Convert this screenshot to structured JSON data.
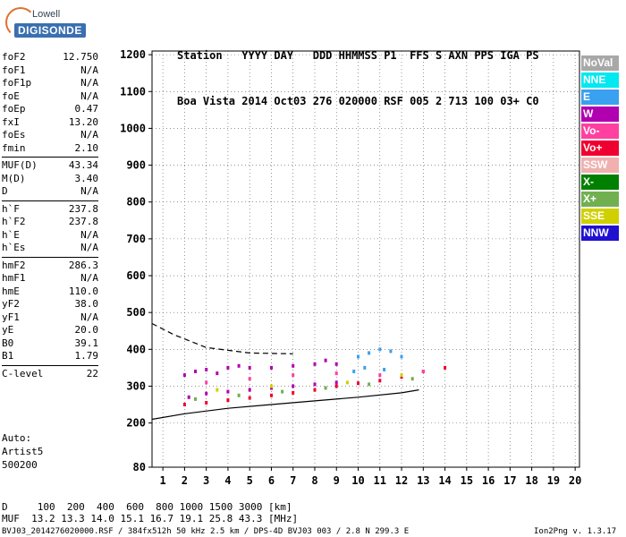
{
  "logo": {
    "line1": "Lowell",
    "line2": "DIGISONDE"
  },
  "header": {
    "row1": "Station   YYYY DAY   DDD HHMMSS P1  FFS S AXN PPS IGA PS",
    "row2": "Boa Vista 2014 Oct03 276 020000 RSF 005 2 713 100 03+ C0"
  },
  "params": {
    "group1": [
      {
        "name": "foF2",
        "value": "12.750"
      },
      {
        "name": "foF1",
        "value": "N/A"
      },
      {
        "name": "foF1p",
        "value": "N/A"
      },
      {
        "name": "foE",
        "value": "N/A"
      },
      {
        "name": "foEp",
        "value": "0.47"
      },
      {
        "name": "fxI",
        "value": "13.20"
      },
      {
        "name": "foEs",
        "value": "N/A"
      },
      {
        "name": "fmin",
        "value": "2.10"
      }
    ],
    "group2": [
      {
        "name": "MUF(D)",
        "value": "43.34"
      },
      {
        "name": "M(D)",
        "value": "3.40"
      },
      {
        "name": "D",
        "value": "N/A"
      }
    ],
    "group3": [
      {
        "name": "h`F",
        "value": "237.8"
      },
      {
        "name": "h`F2",
        "value": "237.8"
      },
      {
        "name": "h`E",
        "value": "N/A"
      },
      {
        "name": "h`Es",
        "value": "N/A"
      }
    ],
    "group4": [
      {
        "name": "hmF2",
        "value": "286.3"
      },
      {
        "name": "hmF1",
        "value": "N/A"
      },
      {
        "name": "hmE",
        "value": "110.0"
      },
      {
        "name": "yF2",
        "value": "38.0"
      },
      {
        "name": "yF1",
        "value": "N/A"
      },
      {
        "name": "yE",
        "value": "20.0"
      },
      {
        "name": "B0",
        "value": "39.1"
      },
      {
        "name": "B1",
        "value": "1.79"
      }
    ],
    "group5": [
      {
        "name": "C-level",
        "value": "22"
      }
    ]
  },
  "auto": {
    "line1": "Auto:",
    "line2": "Artist5",
    "line3": "500200"
  },
  "footer": {
    "d_row": "D     100  200  400  600  800 1000 1500 3000 [km]",
    "muf_row": "MUF  13.2 13.3 14.0 15.1 16.7 19.1 25.8 43.3 [MHz]",
    "file_info": "BVJ03_2014276020000.RSF / 384fx512h 50 kHz 2.5 km / DPS-4D BVJ03 003 / 2.8 N 299.3 E",
    "version": "Ion2Png v. 1.3.17"
  },
  "legend": [
    {
      "label": "NoVal",
      "color": "#a8a8a8"
    },
    {
      "label": "NNE",
      "color": "#00e8f0"
    },
    {
      "label": "E",
      "color": "#3aa0f0"
    },
    {
      "label": "W",
      "color": "#b000b0"
    },
    {
      "label": "Vo-",
      "color": "#ff40a0"
    },
    {
      "label": "Vo+",
      "color": "#f00030"
    },
    {
      "label": "SSW",
      "color": "#f0b0b0"
    },
    {
      "label": "X-",
      "color": "#008000"
    },
    {
      "label": "X+",
      "color": "#70b050"
    },
    {
      "label": "SSE",
      "color": "#d0d000"
    },
    {
      "label": "NNW",
      "color": "#2010d0"
    }
  ],
  "chart_data": {
    "type": "scatter",
    "title": "",
    "xlabel": "",
    "ylabel": "",
    "xlim": [
      0.5,
      20.2
    ],
    "ylim": [
      80,
      1210
    ],
    "x_ticks": [
      1,
      2,
      3,
      4,
      5,
      6,
      7,
      8,
      9,
      10,
      11,
      12,
      13,
      14,
      15,
      16,
      17,
      18,
      19,
      20
    ],
    "y_ticks": [
      80,
      200,
      300,
      400,
      500,
      600,
      700,
      800,
      900,
      1000,
      1100,
      1200
    ],
    "grid": true,
    "series": [
      {
        "name": "W",
        "color": "#b000b0",
        "points": [
          [
            2.0,
            330
          ],
          [
            2.5,
            340
          ],
          [
            3.0,
            345
          ],
          [
            3.5,
            335
          ],
          [
            4.0,
            350
          ],
          [
            4.5,
            355
          ],
          [
            5.0,
            350
          ],
          [
            6.0,
            350
          ],
          [
            7.0,
            355
          ],
          [
            8.0,
            360
          ],
          [
            8.5,
            370
          ],
          [
            9.0,
            360
          ],
          [
            2.2,
            270
          ],
          [
            3.0,
            280
          ],
          [
            4.0,
            285
          ],
          [
            5.0,
            290
          ],
          [
            6.0,
            295
          ],
          [
            7.0,
            300
          ],
          [
            8.0,
            305
          ],
          [
            9.0,
            310
          ]
        ]
      },
      {
        "name": "E",
        "color": "#3aa0f0",
        "points": [
          [
            10.0,
            380
          ],
          [
            10.5,
            390
          ],
          [
            11.0,
            400
          ],
          [
            11.5,
            395
          ],
          [
            12.0,
            380
          ],
          [
            10.3,
            350
          ],
          [
            11.2,
            345
          ],
          [
            9.8,
            340
          ]
        ]
      },
      {
        "name": "Vo+",
        "color": "#f00030",
        "points": [
          [
            2.0,
            250
          ],
          [
            3.0,
            255
          ],
          [
            4.0,
            262
          ],
          [
            5.0,
            268
          ],
          [
            6.0,
            275
          ],
          [
            7.0,
            282
          ],
          [
            8.0,
            290
          ],
          [
            9.0,
            300
          ],
          [
            10.0,
            308
          ],
          [
            11.0,
            315
          ],
          [
            12.0,
            325
          ],
          [
            13.0,
            340
          ],
          [
            14.0,
            350
          ]
        ]
      },
      {
        "name": "Vo-",
        "color": "#ff40a0",
        "points": [
          [
            3.0,
            310
          ],
          [
            5.0,
            320
          ],
          [
            7.0,
            330
          ],
          [
            9.0,
            335
          ],
          [
            11.0,
            330
          ],
          [
            13.0,
            340
          ]
        ]
      },
      {
        "name": "X+",
        "color": "#70b050",
        "points": [
          [
            2.5,
            265
          ],
          [
            4.5,
            275
          ],
          [
            6.5,
            285
          ],
          [
            8.5,
            295
          ],
          [
            10.5,
            305
          ],
          [
            12.5,
            320
          ]
        ]
      },
      {
        "name": "SSE",
        "color": "#d0d000",
        "points": [
          [
            3.5,
            290
          ],
          [
            6.0,
            300
          ],
          [
            9.5,
            310
          ],
          [
            12.0,
            330
          ]
        ]
      }
    ],
    "fitted_curves": [
      {
        "style": "solid",
        "points": [
          [
            0.5,
            210
          ],
          [
            2,
            225
          ],
          [
            4,
            240
          ],
          [
            6,
            250
          ],
          [
            8,
            260
          ],
          [
            10,
            270
          ],
          [
            12,
            282
          ],
          [
            12.8,
            290
          ]
        ]
      },
      {
        "style": "dashed",
        "points": [
          [
            0.5,
            470
          ],
          [
            1.5,
            440
          ],
          [
            3,
            405
          ],
          [
            5,
            390
          ],
          [
            7,
            388
          ]
        ]
      }
    ]
  }
}
